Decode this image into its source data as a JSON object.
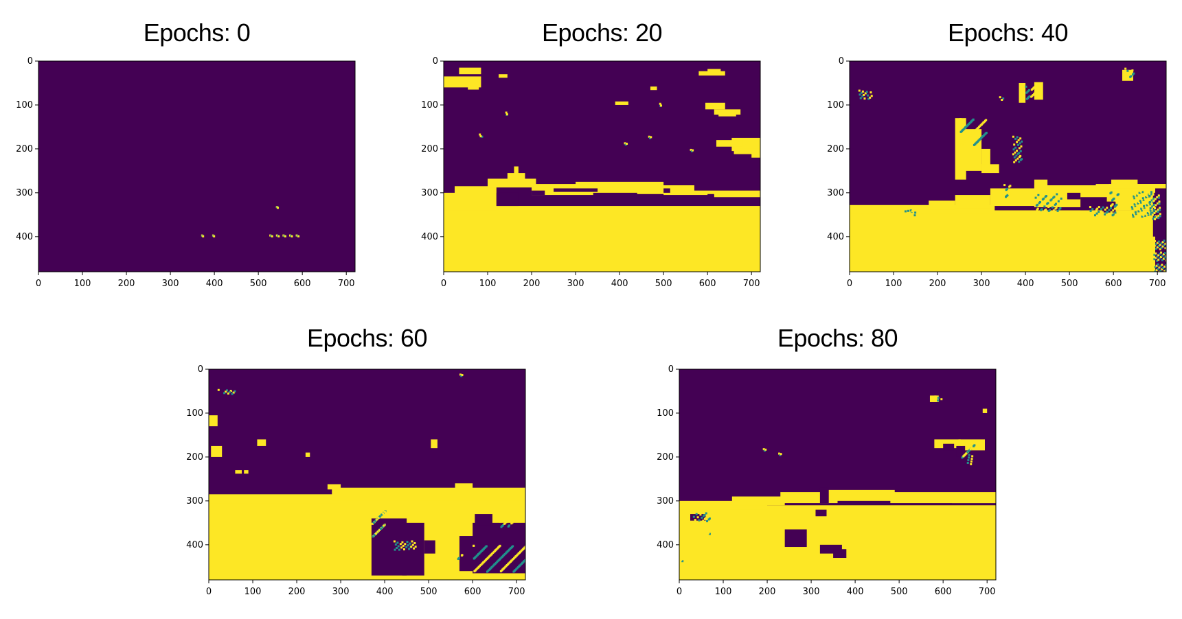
{
  "colors": {
    "background": "#440154",
    "foreground": "#fde725",
    "noise": "#21918c"
  },
  "axis": {
    "xlim": [
      0,
      720
    ],
    "ylim": [
      480,
      0
    ],
    "xticks": [
      0,
      100,
      200,
      300,
      400,
      500,
      600,
      700
    ],
    "yticks": [
      0,
      100,
      200,
      300,
      400
    ]
  },
  "chart_data": [
    {
      "type": "heatmap",
      "title": "Epochs: 0",
      "regions": [],
      "noise": [
        [
          370,
          395,
          6,
          4
        ],
        [
          395,
          395,
          6,
          4
        ],
        [
          525,
          395,
          5,
          4
        ],
        [
          540,
          395,
          5,
          4
        ],
        [
          555,
          395,
          5,
          4
        ],
        [
          570,
          395,
          5,
          4
        ],
        [
          585,
          395,
          5,
          4
        ],
        [
          540,
          330,
          4,
          4
        ]
      ]
    },
    {
      "type": "heatmap",
      "title": "Epochs: 20",
      "regions": [
        [
          0,
          330,
          720,
          150
        ],
        [
          0,
          300,
          100,
          40
        ],
        [
          25,
          285,
          95,
          55
        ],
        [
          100,
          268,
          110,
          20
        ],
        [
          145,
          255,
          40,
          30
        ],
        [
          160,
          240,
          10,
          40
        ],
        [
          200,
          280,
          140,
          25
        ],
        [
          300,
          275,
          200,
          25
        ],
        [
          440,
          283,
          130,
          20
        ],
        [
          500,
          295,
          220,
          10
        ],
        [
          615,
          300,
          105,
          10
        ],
        [
          0,
          35,
          85,
          25
        ],
        [
          35,
          15,
          50,
          15
        ],
        [
          55,
          55,
          25,
          10
        ],
        [
          580,
          23,
          60,
          10
        ],
        [
          600,
          18,
          30,
          8
        ],
        [
          595,
          95,
          45,
          15
        ],
        [
          615,
          110,
          60,
          12
        ],
        [
          625,
          118,
          40,
          8
        ],
        [
          655,
          175,
          65,
          30
        ],
        [
          620,
          180,
          60,
          15
        ],
        [
          660,
          200,
          60,
          12
        ],
        [
          700,
          210,
          20,
          10
        ],
        [
          390,
          92,
          30,
          8
        ],
        [
          470,
          58,
          15,
          8
        ],
        [
          125,
          30,
          20,
          8
        ]
      ],
      "holes": [
        [
          120,
          300,
          50,
          30
        ],
        [
          200,
          295,
          30,
          10
        ],
        [
          500,
          290,
          15,
          10
        ],
        [
          600,
          303,
          15,
          10
        ],
        [
          250,
          290,
          100,
          8
        ]
      ],
      "noise": [
        [
          80,
          165,
          8,
          6
        ],
        [
          140,
          115,
          6,
          6
        ],
        [
          410,
          185,
          5,
          5
        ],
        [
          465,
          170,
          5,
          5
        ],
        [
          490,
          95,
          6,
          6
        ],
        [
          560,
          200,
          5,
          5
        ]
      ]
    },
    {
      "type": "heatmap",
      "title": "Epochs: 40",
      "regions": [
        [
          0,
          340,
          720,
          140
        ],
        [
          0,
          328,
          330,
          20
        ],
        [
          180,
          318,
          60,
          20
        ],
        [
          240,
          305,
          80,
          30
        ],
        [
          320,
          290,
          120,
          40
        ],
        [
          420,
          283,
          150,
          50
        ],
        [
          560,
          280,
          160,
          60
        ],
        [
          240,
          130,
          25,
          140
        ],
        [
          260,
          155,
          40,
          95
        ],
        [
          300,
          200,
          20,
          50
        ],
        [
          300,
          235,
          40,
          20
        ],
        [
          420,
          270,
          30,
          30
        ],
        [
          590,
          280,
          130,
          10
        ],
        [
          595,
          270,
          60,
          12
        ],
        [
          420,
          48,
          20,
          40
        ],
        [
          385,
          50,
          15,
          45
        ],
        [
          620,
          20,
          25,
          25
        ]
      ],
      "holes": [
        [
          695,
          290,
          25,
          190
        ],
        [
          690,
          300,
          20,
          100
        ],
        [
          495,
          300,
          30,
          15
        ],
        [
          525,
          310,
          60,
          30
        ],
        [
          575,
          320,
          30,
          25
        ]
      ],
      "noise": [
        [
          20,
          65,
          30,
          20
        ],
        [
          250,
          130,
          60,
          60
        ],
        [
          370,
          170,
          20,
          60
        ],
        [
          350,
          280,
          15,
          30
        ],
        [
          420,
          300,
          60,
          40
        ],
        [
          640,
          295,
          55,
          60
        ],
        [
          690,
          400,
          30,
          80
        ],
        [
          545,
          330,
          60,
          20
        ],
        [
          120,
          330,
          20,
          15
        ],
        [
          140,
          340,
          15,
          10
        ],
        [
          590,
          290,
          20,
          40
        ],
        [
          680,
          300,
          25,
          60
        ],
        [
          395,
          55,
          25,
          30
        ],
        [
          625,
          15,
          20,
          20
        ],
        [
          340,
          80,
          10,
          10
        ]
      ]
    },
    {
      "type": "heatmap",
      "title": "Epochs: 60",
      "regions": [
        [
          0,
          295,
          720,
          185
        ],
        [
          0,
          285,
          300,
          20
        ],
        [
          280,
          270,
          440,
          30
        ],
        [
          270,
          262,
          30,
          12
        ],
        [
          560,
          260,
          40,
          15
        ],
        [
          0,
          105,
          20,
          25
        ],
        [
          5,
          175,
          25,
          25
        ],
        [
          110,
          160,
          20,
          15
        ],
        [
          505,
          160,
          15,
          20
        ],
        [
          220,
          190,
          10,
          10
        ],
        [
          80,
          230,
          10,
          8
        ],
        [
          60,
          230,
          15,
          8
        ]
      ],
      "holes": [
        [
          370,
          340,
          80,
          130
        ],
        [
          440,
          350,
          50,
          120
        ],
        [
          490,
          390,
          25,
          30
        ],
        [
          600,
          350,
          120,
          115
        ],
        [
          570,
          380,
          40,
          80
        ],
        [
          605,
          330,
          40,
          25
        ]
      ],
      "noise": [
        [
          370,
          320,
          30,
          60
        ],
        [
          600,
          400,
          120,
          60
        ],
        [
          420,
          390,
          50,
          20
        ],
        [
          560,
          420,
          15,
          15
        ],
        [
          20,
          45,
          40,
          10
        ],
        [
          570,
          10,
          5,
          5
        ],
        [
          660,
          345,
          30,
          15
        ]
      ]
    },
    {
      "type": "heatmap",
      "title": "Epochs: 80",
      "regions": [
        [
          0,
          310,
          720,
          170
        ],
        [
          0,
          300,
          200,
          20
        ],
        [
          120,
          290,
          120,
          20
        ],
        [
          230,
          280,
          130,
          25
        ],
        [
          330,
          275,
          160,
          25
        ],
        [
          480,
          280,
          240,
          25
        ],
        [
          620,
          295,
          100,
          10
        ],
        [
          580,
          160,
          60,
          20
        ],
        [
          635,
          160,
          60,
          25
        ],
        [
          570,
          60,
          20,
          15
        ],
        [
          690,
          90,
          10,
          10
        ]
      ],
      "holes": [
        [
          240,
          365,
          50,
          40
        ],
        [
          320,
          270,
          20,
          35
        ],
        [
          310,
          320,
          25,
          15
        ],
        [
          320,
          400,
          50,
          20
        ],
        [
          350,
          410,
          30,
          20
        ],
        [
          25,
          330,
          35,
          15
        ],
        [
          600,
          170,
          25,
          15
        ],
        [
          630,
          175,
          20,
          25
        ]
      ],
      "noise": [
        [
          30,
          325,
          40,
          20
        ],
        [
          640,
          170,
          30,
          30
        ],
        [
          50,
          370,
          20,
          5
        ],
        [
          580,
          60,
          15,
          10
        ],
        [
          225,
          190,
          5,
          5
        ],
        [
          190,
          180,
          5,
          5
        ],
        [
          650,
          190,
          15,
          25
        ],
        [
          0,
          430,
          8,
          8
        ]
      ]
    }
  ]
}
